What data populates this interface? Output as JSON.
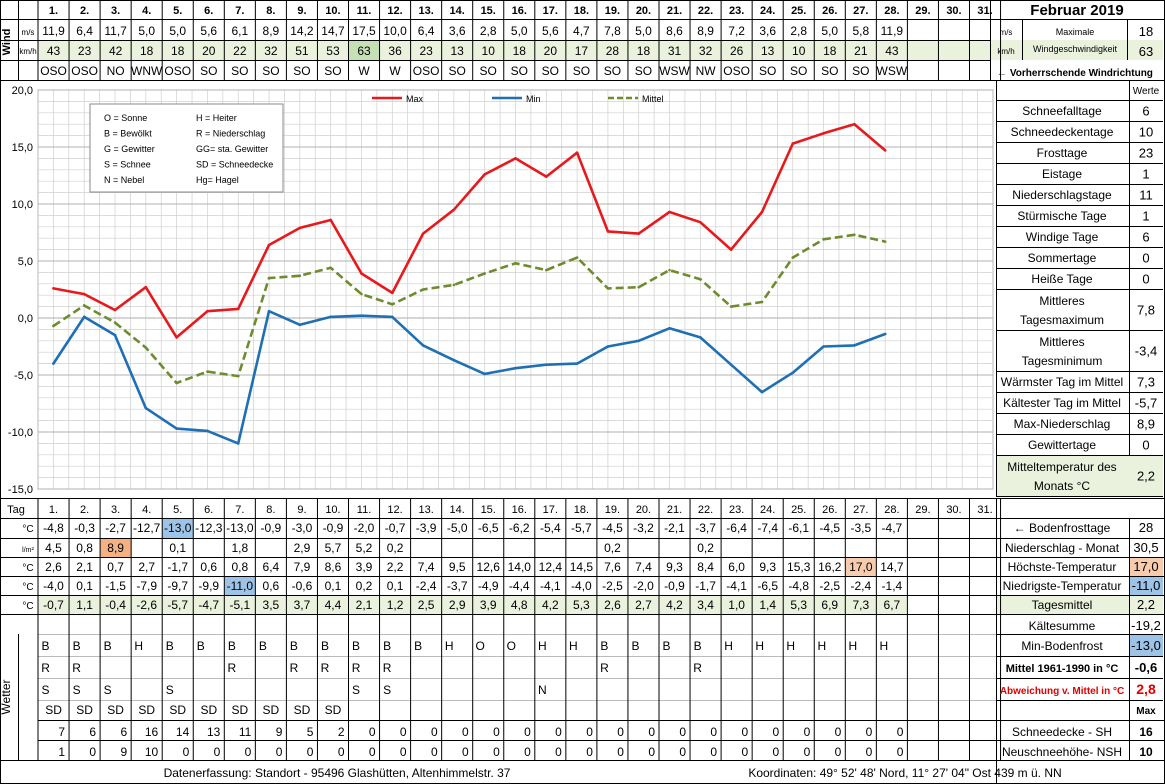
{
  "header": {
    "month_title": "Februar 2019",
    "wind_label": "Wind",
    "max_wind_label_1": "Maximale",
    "max_wind_label_2": "Windgeschwindigkeit",
    "unit_ms": "m/s",
    "unit_kmh": "km/h",
    "max_wind_ms": "18",
    "max_wind_kmh": "63",
    "prevailing_label": "← Vorherrschende Windrichtung"
  },
  "days": [
    "1.",
    "2.",
    "3.",
    "4.",
    "5.",
    "6.",
    "7.",
    "8.",
    "9.",
    "10.",
    "11.",
    "12.",
    "13.",
    "14.",
    "15.",
    "16.",
    "17.",
    "18.",
    "19.",
    "20.",
    "21.",
    "22.",
    "23.",
    "24.",
    "25.",
    "26.",
    "27.",
    "28.",
    "29.",
    "30.",
    "31."
  ],
  "wind": {
    "ms": [
      "11,9",
      "6,4",
      "11,7",
      "5,0",
      "5,0",
      "5,6",
      "6,1",
      "8,9",
      "14,2",
      "14,7",
      "17,5",
      "10,0",
      "6,4",
      "3,6",
      "2,8",
      "5,0",
      "5,6",
      "4,7",
      "7,8",
      "5,0",
      "8,6",
      "8,9",
      "7,2",
      "3,6",
      "2,8",
      "5,0",
      "5,8",
      "11,9",
      "",
      "",
      ""
    ],
    "kmh": [
      "43",
      "23",
      "42",
      "18",
      "18",
      "20",
      "22",
      "32",
      "51",
      "53",
      "63",
      "36",
      "23",
      "13",
      "10",
      "18",
      "20",
      "17",
      "28",
      "18",
      "31",
      "32",
      "26",
      "13",
      "10",
      "18",
      "21",
      "43",
      "",
      "",
      ""
    ],
    "dir": [
      "OSO",
      "OSO",
      "NO",
      "WNW",
      "OSO",
      "SO",
      "SO",
      "SO",
      "SO",
      "SO",
      "W",
      "W",
      "OSO",
      "SO",
      "SO",
      "SO",
      "SO",
      "SO",
      "SO",
      "SO",
      "WSW",
      "NW",
      "OSO",
      "SO",
      "SO",
      "SO",
      "SO",
      "WSW",
      "",
      "",
      ""
    ]
  },
  "chart_data": {
    "type": "line",
    "categories": [
      "1.",
      "2.",
      "3.",
      "4.",
      "5.",
      "6.",
      "7.",
      "8.",
      "9.",
      "10.",
      "11.",
      "12.",
      "13.",
      "14.",
      "15.",
      "16.",
      "17.",
      "18.",
      "19.",
      "20.",
      "21.",
      "22.",
      "23.",
      "24.",
      "25.",
      "26.",
      "27.",
      "28."
    ],
    "series": [
      {
        "name": "Max",
        "color": "#e8191c",
        "values": [
          2.6,
          2.1,
          0.7,
          2.7,
          -1.7,
          0.6,
          0.8,
          6.4,
          7.9,
          8.6,
          3.9,
          2.2,
          7.4,
          9.5,
          12.6,
          14.0,
          12.4,
          14.5,
          7.6,
          7.4,
          9.3,
          8.4,
          6.0,
          9.3,
          15.3,
          16.2,
          17.0,
          14.7
        ]
      },
      {
        "name": "Min",
        "color": "#1f6fb5",
        "values": [
          -4.0,
          0.1,
          -1.5,
          -7.9,
          -9.7,
          -9.9,
          -11.0,
          0.6,
          -0.6,
          0.1,
          0.2,
          0.1,
          -2.4,
          -3.7,
          -4.9,
          -4.4,
          -4.1,
          -4.0,
          -2.5,
          -2.0,
          -0.9,
          -1.7,
          -4.1,
          -6.5,
          -4.8,
          -2.5,
          -2.4,
          -1.4
        ]
      },
      {
        "name": "Mittel",
        "color": "#6e8c2f",
        "values": [
          -0.7,
          1.1,
          -0.4,
          -2.6,
          -5.7,
          -4.7,
          -5.1,
          3.5,
          3.7,
          4.4,
          2.1,
          1.2,
          2.5,
          2.9,
          3.9,
          4.8,
          4.2,
          5.3,
          2.6,
          2.7,
          4.2,
          3.4,
          1.0,
          1.4,
          5.3,
          6.9,
          7.3,
          6.7
        ]
      }
    ],
    "ylim": [
      -15,
      20
    ],
    "yticks": [
      "20,0",
      "15,0",
      "10,0",
      "5,0",
      "0,0",
      "-5,0",
      "-10,0",
      "-15,0"
    ],
    "grid": true,
    "legend_placement": "top"
  },
  "legend_box": [
    [
      "O = Sonne",
      "H = Heiter"
    ],
    [
      "B = Bewölkt",
      "R = Niederschlag"
    ],
    [
      "G = Gewitter",
      "GG= sta. Gewitter"
    ],
    [
      "S = Schnee",
      "SD = Schneedecke"
    ],
    [
      "N = Nebel",
      "Hg= Hagel"
    ]
  ],
  "stats": {
    "header": "Werte",
    "rows": [
      {
        "label": "Schneefalltage",
        "value": "6"
      },
      {
        "label": "Schneedeckentage",
        "value": "10"
      },
      {
        "label": "Frosttage",
        "value": "23"
      },
      {
        "label": "Eistage",
        "value": "1"
      },
      {
        "label": "Niederschlagstage",
        "value": "11"
      },
      {
        "label": "Stürmische Tage",
        "value": "1"
      },
      {
        "label": "Windige Tage",
        "value": "6"
      },
      {
        "label": "Sommertage",
        "value": "0"
      },
      {
        "label": "Heiße Tage",
        "value": "0"
      },
      {
        "label": "Mittleres Tagesmaximum",
        "value": "7,8"
      },
      {
        "label": "Mittleres Tagesminimum",
        "value": "-3,4"
      },
      {
        "label": "Wärmster Tag im Mittel",
        "value": "7,3"
      },
      {
        "label": "Kältester Tag im Mittel",
        "value": "-5,7"
      },
      {
        "label": "Max-Niederschlag",
        "value": "8,9"
      },
      {
        "label": "Gewittertage",
        "value": "0"
      },
      {
        "label": "Mitteltemperatur des Monats °C",
        "value": "2,2"
      }
    ]
  },
  "table": {
    "tag_label": "Tag",
    "rows": [
      {
        "unit": "°C",
        "values": [
          "-4,8",
          "-0,3",
          "-2,7",
          "-12,7",
          "-13,0",
          "-12,3",
          "-13,0",
          "-0,9",
          "-3,0",
          "-0,9",
          "-2,0",
          "-0,7",
          "-3,9",
          "-5,0",
          "-6,5",
          "-6,2",
          "-5,4",
          "-5,7",
          "-4,5",
          "-3,2",
          "-2,1",
          "-3,7",
          "-6,4",
          "-7,4",
          "-6,1",
          "-4,5",
          "-3,5",
          "-4,7"
        ],
        "label": "← Bodenfrosttage",
        "value": "28"
      },
      {
        "unit": "l/m²",
        "values": [
          "4,5",
          "0,8",
          "8,9",
          "",
          "0,1",
          "",
          "1,8",
          "",
          "2,9",
          "5,7",
          "5,2",
          "0,2",
          "",
          "",
          "",
          "",
          "",
          "",
          "0,2",
          "",
          "",
          "0,2",
          "",
          "",
          "",
          "",
          "",
          ""
        ],
        "label": "Niederschlag - Monat",
        "value": "30,5"
      },
      {
        "unit": "°C",
        "values": [
          "2,6",
          "2,1",
          "0,7",
          "2,7",
          "-1,7",
          "0,6",
          "0,8",
          "6,4",
          "7,9",
          "8,6",
          "3,9",
          "2,2",
          "7,4",
          "9,5",
          "12,6",
          "14,0",
          "12,4",
          "14,5",
          "7,6",
          "7,4",
          "9,3",
          "8,4",
          "6,0",
          "9,3",
          "15,3",
          "16,2",
          "17,0",
          "14,7"
        ],
        "label": "Höchste-Temperatur",
        "value": "17,0"
      },
      {
        "unit": "°C",
        "values": [
          "-4,0",
          "0,1",
          "-1,5",
          "-7,9",
          "-9,7",
          "-9,9",
          "-11,0",
          "0,6",
          "-0,6",
          "0,1",
          "0,2",
          "0,1",
          "-2,4",
          "-3,7",
          "-4,9",
          "-4,4",
          "-4,1",
          "-4,0",
          "-2,5",
          "-2,0",
          "-0,9",
          "-1,7",
          "-4,1",
          "-6,5",
          "-4,8",
          "-2,5",
          "-2,4",
          "-1,4"
        ],
        "label": "Niedrigste-Temperatur",
        "value": "-11,0"
      },
      {
        "unit": "°C",
        "values": [
          "-0,7",
          "1,1",
          "-0,4",
          "-2,6",
          "-5,7",
          "-4,7",
          "-5,1",
          "3,5",
          "3,7",
          "4,4",
          "2,1",
          "1,2",
          "2,5",
          "2,9",
          "3,9",
          "4,8",
          "4,2",
          "5,3",
          "2,6",
          "2,7",
          "4,2",
          "3,4",
          "1,0",
          "1,4",
          "5,3",
          "6,9",
          "7,3",
          "6,7"
        ],
        "label": "Tagesmittel",
        "value": "2,2"
      }
    ],
    "highlight_colors": {
      "orange": "#f4b183",
      "blue": "#9dc3e6",
      "pink": "#f8cbad",
      "green_band": "#eaf1dd"
    }
  },
  "weather": {
    "label": "Wetter",
    "rows": [
      [
        "B",
        "B",
        "B",
        "H",
        "B",
        "B",
        "B",
        "B",
        "B",
        "B",
        "B",
        "B",
        "B",
        "H",
        "O",
        "O",
        "H",
        "H",
        "B",
        "B",
        "B",
        "B",
        "H",
        "H",
        "H",
        "H",
        "H",
        "H"
      ],
      [
        "R",
        "R",
        "",
        "",
        "",
        "",
        "R",
        "",
        "R",
        "R",
        "R",
        "R",
        "",
        "",
        "",
        "",
        "",
        "",
        "R",
        "",
        "",
        "R",
        "",
        "",
        "",
        "",
        "",
        ""
      ],
      [
        "S",
        "S",
        "S",
        "",
        "S",
        "",
        "",
        "",
        "",
        "",
        "S",
        "S",
        "",
        "",
        "",
        "",
        "N",
        "",
        "",
        "",
        "",
        "",
        "",
        "",
        "",
        "",
        "",
        ""
      ],
      [
        "SD",
        "SD",
        "SD",
        "SD",
        "SD",
        "SD",
        "SD",
        "SD",
        "SD",
        "SD",
        "",
        "",
        "",
        "",
        "",
        "",
        "",
        "",
        "",
        "",
        "",
        "",
        "",
        "",
        "",
        "",
        "",
        ""
      ]
    ],
    "sh": [
      "7",
      "6",
      "6",
      "16",
      "14",
      "13",
      "11",
      "9",
      "5",
      "2",
      "0",
      "0",
      "0",
      "0",
      "0",
      "0",
      "0",
      "0",
      "0",
      "0",
      "0",
      "0",
      "0",
      "0",
      "0",
      "0",
      "0",
      "0"
    ],
    "nsh": [
      "1",
      "0",
      "9",
      "10",
      "0",
      "0",
      "0",
      "0",
      "0",
      "0",
      "0",
      "0",
      "0",
      "0",
      "0",
      "0",
      "0",
      "0",
      "0",
      "0",
      "0",
      "0",
      "0",
      "0",
      "0",
      "0",
      "0",
      "0"
    ]
  },
  "side_lower": {
    "kaeltesumme_label": "Kältesumme",
    "kaeltesumme_value": "-19,2",
    "minboden_label": "Min-Bodenfrost",
    "minboden_value": "-13,0",
    "mittel_label": "Mittel 1961-1990 in °C",
    "mittel_value": "-0,6",
    "abw_label": "Abweichung v. Mittel in °C",
    "abw_value": "2,8",
    "max_label": "Max",
    "sh_label": "Schneedecke -  SH",
    "sh_value": "16",
    "nsh_label": "Neuschneehöhe- NSH",
    "nsh_value": "10"
  },
  "footer": {
    "left": "Datenerfassung:  Standort -  95496  Glashütten, Altenhimmelstr. 37",
    "right": "Koordinaten:  49° 52' 48' Nord,    11° 27' 04\" Ost    439 m ü. NN"
  }
}
